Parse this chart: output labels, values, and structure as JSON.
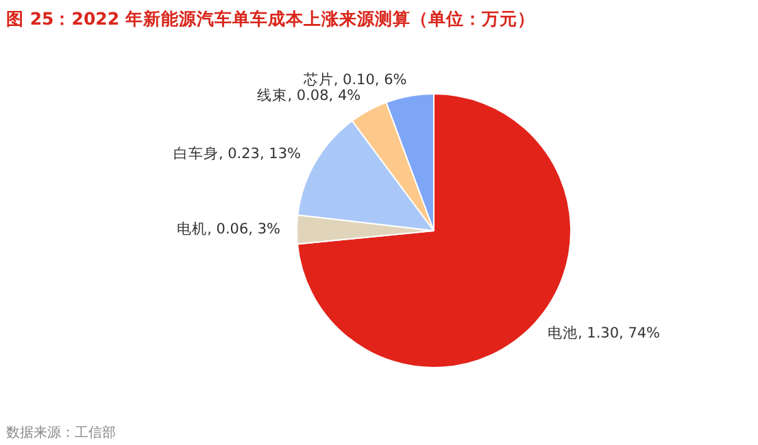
{
  "chart_data": {
    "type": "pie",
    "title": "图 25：2022 年新能源汽车单车成本上涨来源测算（单位：万元）",
    "categories": [
      "电池",
      "电机",
      "白车身",
      "线束",
      "芯片"
    ],
    "values": [
      1.3,
      0.06,
      0.23,
      0.08,
      0.1
    ],
    "colors": [
      "#e2231a",
      "#e0d5bb",
      "#a9c8f7",
      "#fcc98b",
      "#7ea6f7"
    ],
    "value_labels": [
      "1.30, 74%",
      "0.06, 3%",
      "0.23, 13%",
      "0.08, 4%",
      "0.10, 6%"
    ],
    "annotations": [
      "数据来源：工信部"
    ]
  }
}
